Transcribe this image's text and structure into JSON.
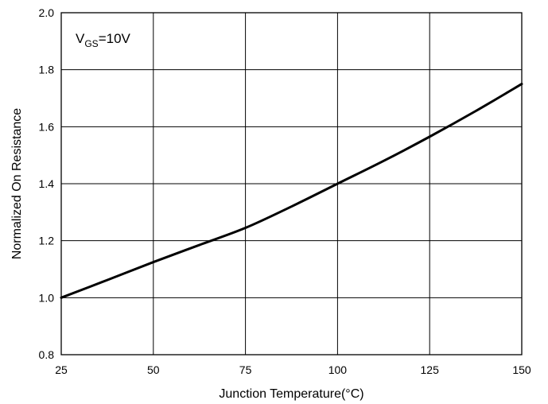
{
  "chart_data": {
    "type": "line",
    "xlabel": "Junction Temperature(°C)",
    "ylabel": "Normalized On Resistance",
    "xlim": [
      25,
      150
    ],
    "ylim": [
      0.8,
      2.0
    ],
    "x_ticks": [
      25,
      50,
      75,
      100,
      125,
      150
    ],
    "y_ticks": [
      0.8,
      1.0,
      1.2,
      1.4,
      1.6,
      1.8,
      2.0
    ],
    "x_tick_labels": [
      "25",
      "50",
      "75",
      "100",
      "125",
      "150"
    ],
    "y_tick_labels": [
      "0.8",
      "1.0",
      "1.2",
      "1.4",
      "1.6",
      "1.8",
      "2.0"
    ],
    "grid": true,
    "annotation": {
      "main": "V",
      "sub": "GS",
      "rest": "=10V"
    },
    "series": [
      {
        "x": [
          25,
          37.5,
          50,
          62.5,
          75,
          87.5,
          100,
          112.5,
          125,
          137.5,
          150
        ],
        "values": [
          1.0,
          1.062,
          1.125,
          1.185,
          1.245,
          1.32,
          1.4,
          1.48,
          1.565,
          1.655,
          1.75
        ]
      }
    ]
  }
}
